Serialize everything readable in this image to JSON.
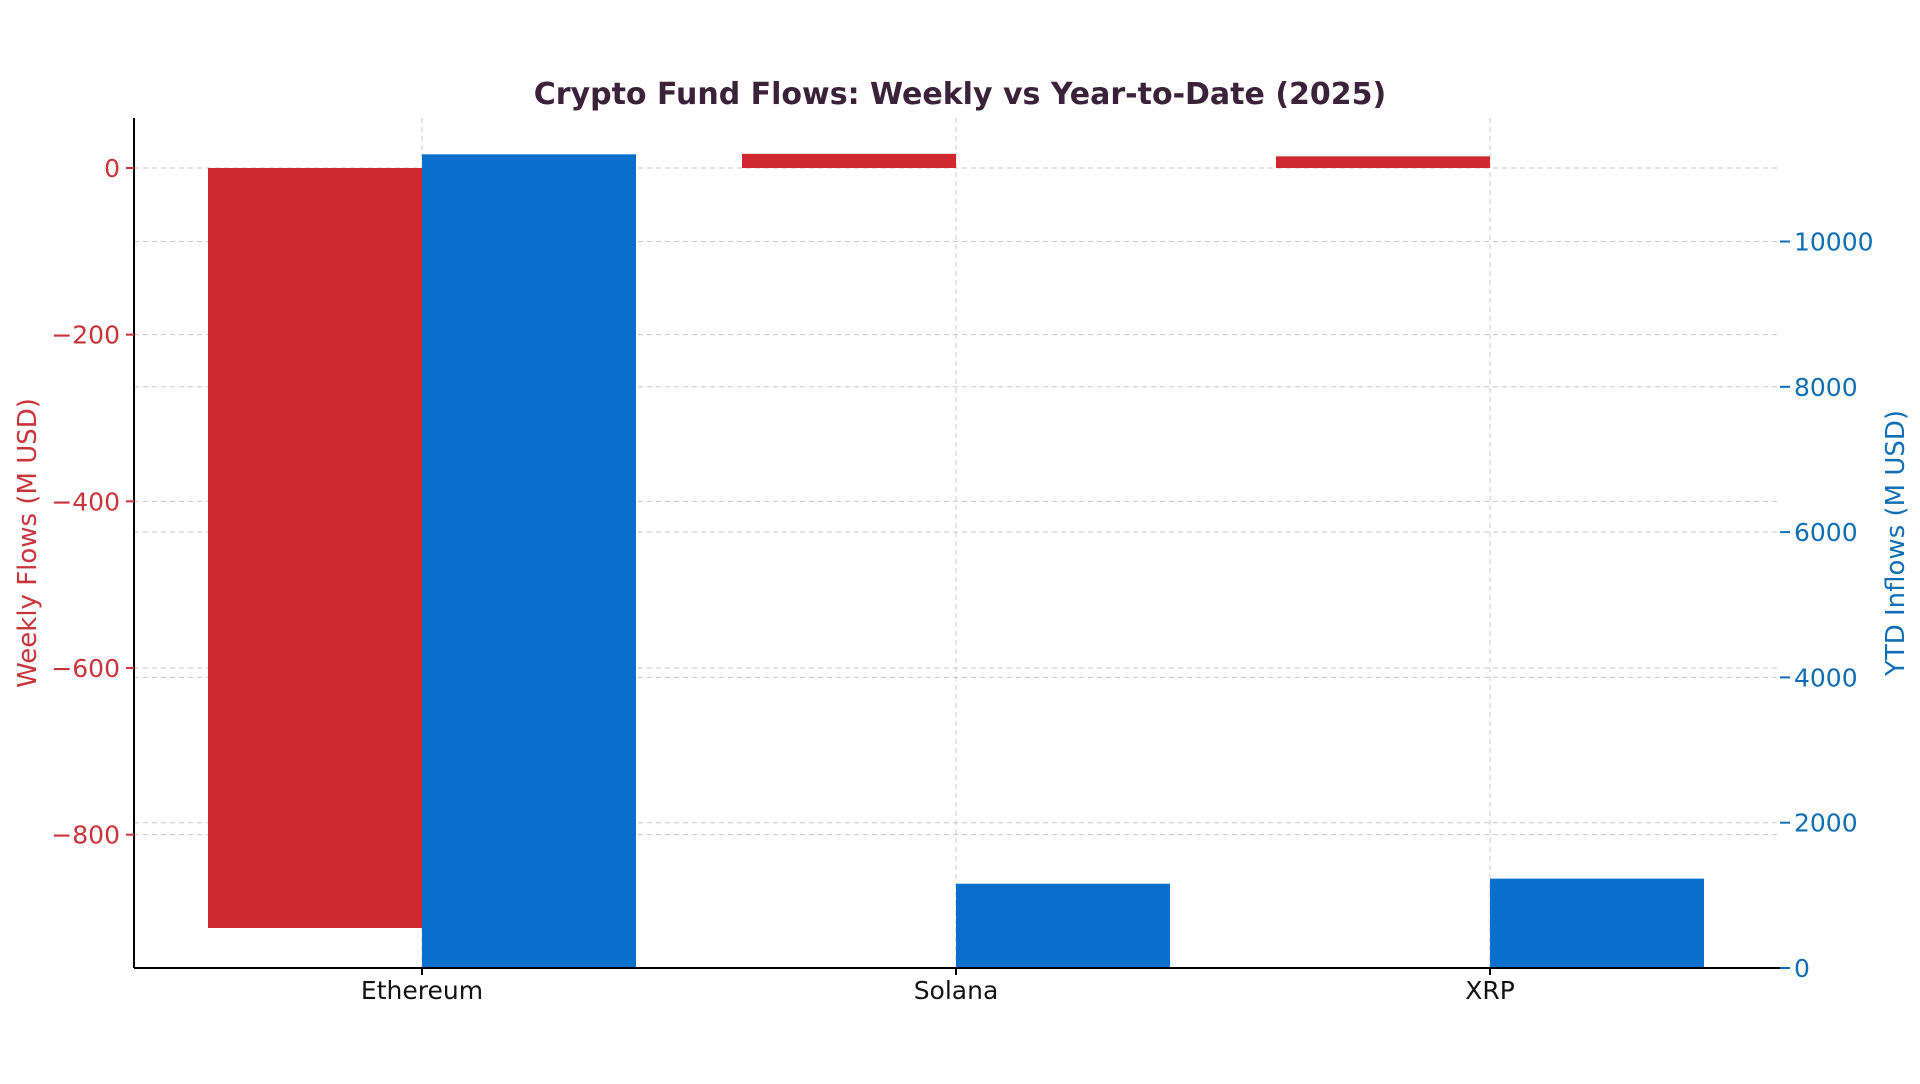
{
  "chart_data": {
    "type": "bar",
    "title": "Crypto Fund Flows: Weekly vs Year-to-Date (2025)",
    "categories": [
      "Ethereum",
      "Solana",
      "XRP"
    ],
    "series": [
      {
        "name": "Weekly Flows (M USD)",
        "axis": "left",
        "values": [
          -912,
          17,
          14
        ]
      },
      {
        "name": "YTD Inflows (M USD)",
        "axis": "right",
        "values": [
          11200,
          1160,
          1230
        ]
      }
    ],
    "y_left": {
      "label": "Weekly Flows (M USD)",
      "ticks": [
        0,
        -200,
        -400,
        -600,
        -800
      ],
      "tick_labels": [
        "0",
        "−200",
        "−400",
        "−600",
        "−800"
      ],
      "range": [
        -960,
        60
      ]
    },
    "y_right": {
      "label": "YTD Inflows (M USD)",
      "ticks": [
        0,
        2000,
        4000,
        6000,
        8000,
        10000
      ],
      "tick_labels": [
        "0",
        "2000",
        "4000",
        "6000",
        "8000",
        "10000"
      ],
      "range": [
        0,
        11700
      ]
    },
    "grid": true,
    "legend": "none",
    "colors": {
      "weekly": "#d0282f",
      "ytd": "#086fcc",
      "left_axis": "#c8343c",
      "right_axis": "#0f6eb4",
      "title": "#3a2238",
      "grid": "#c8c8c8"
    }
  }
}
